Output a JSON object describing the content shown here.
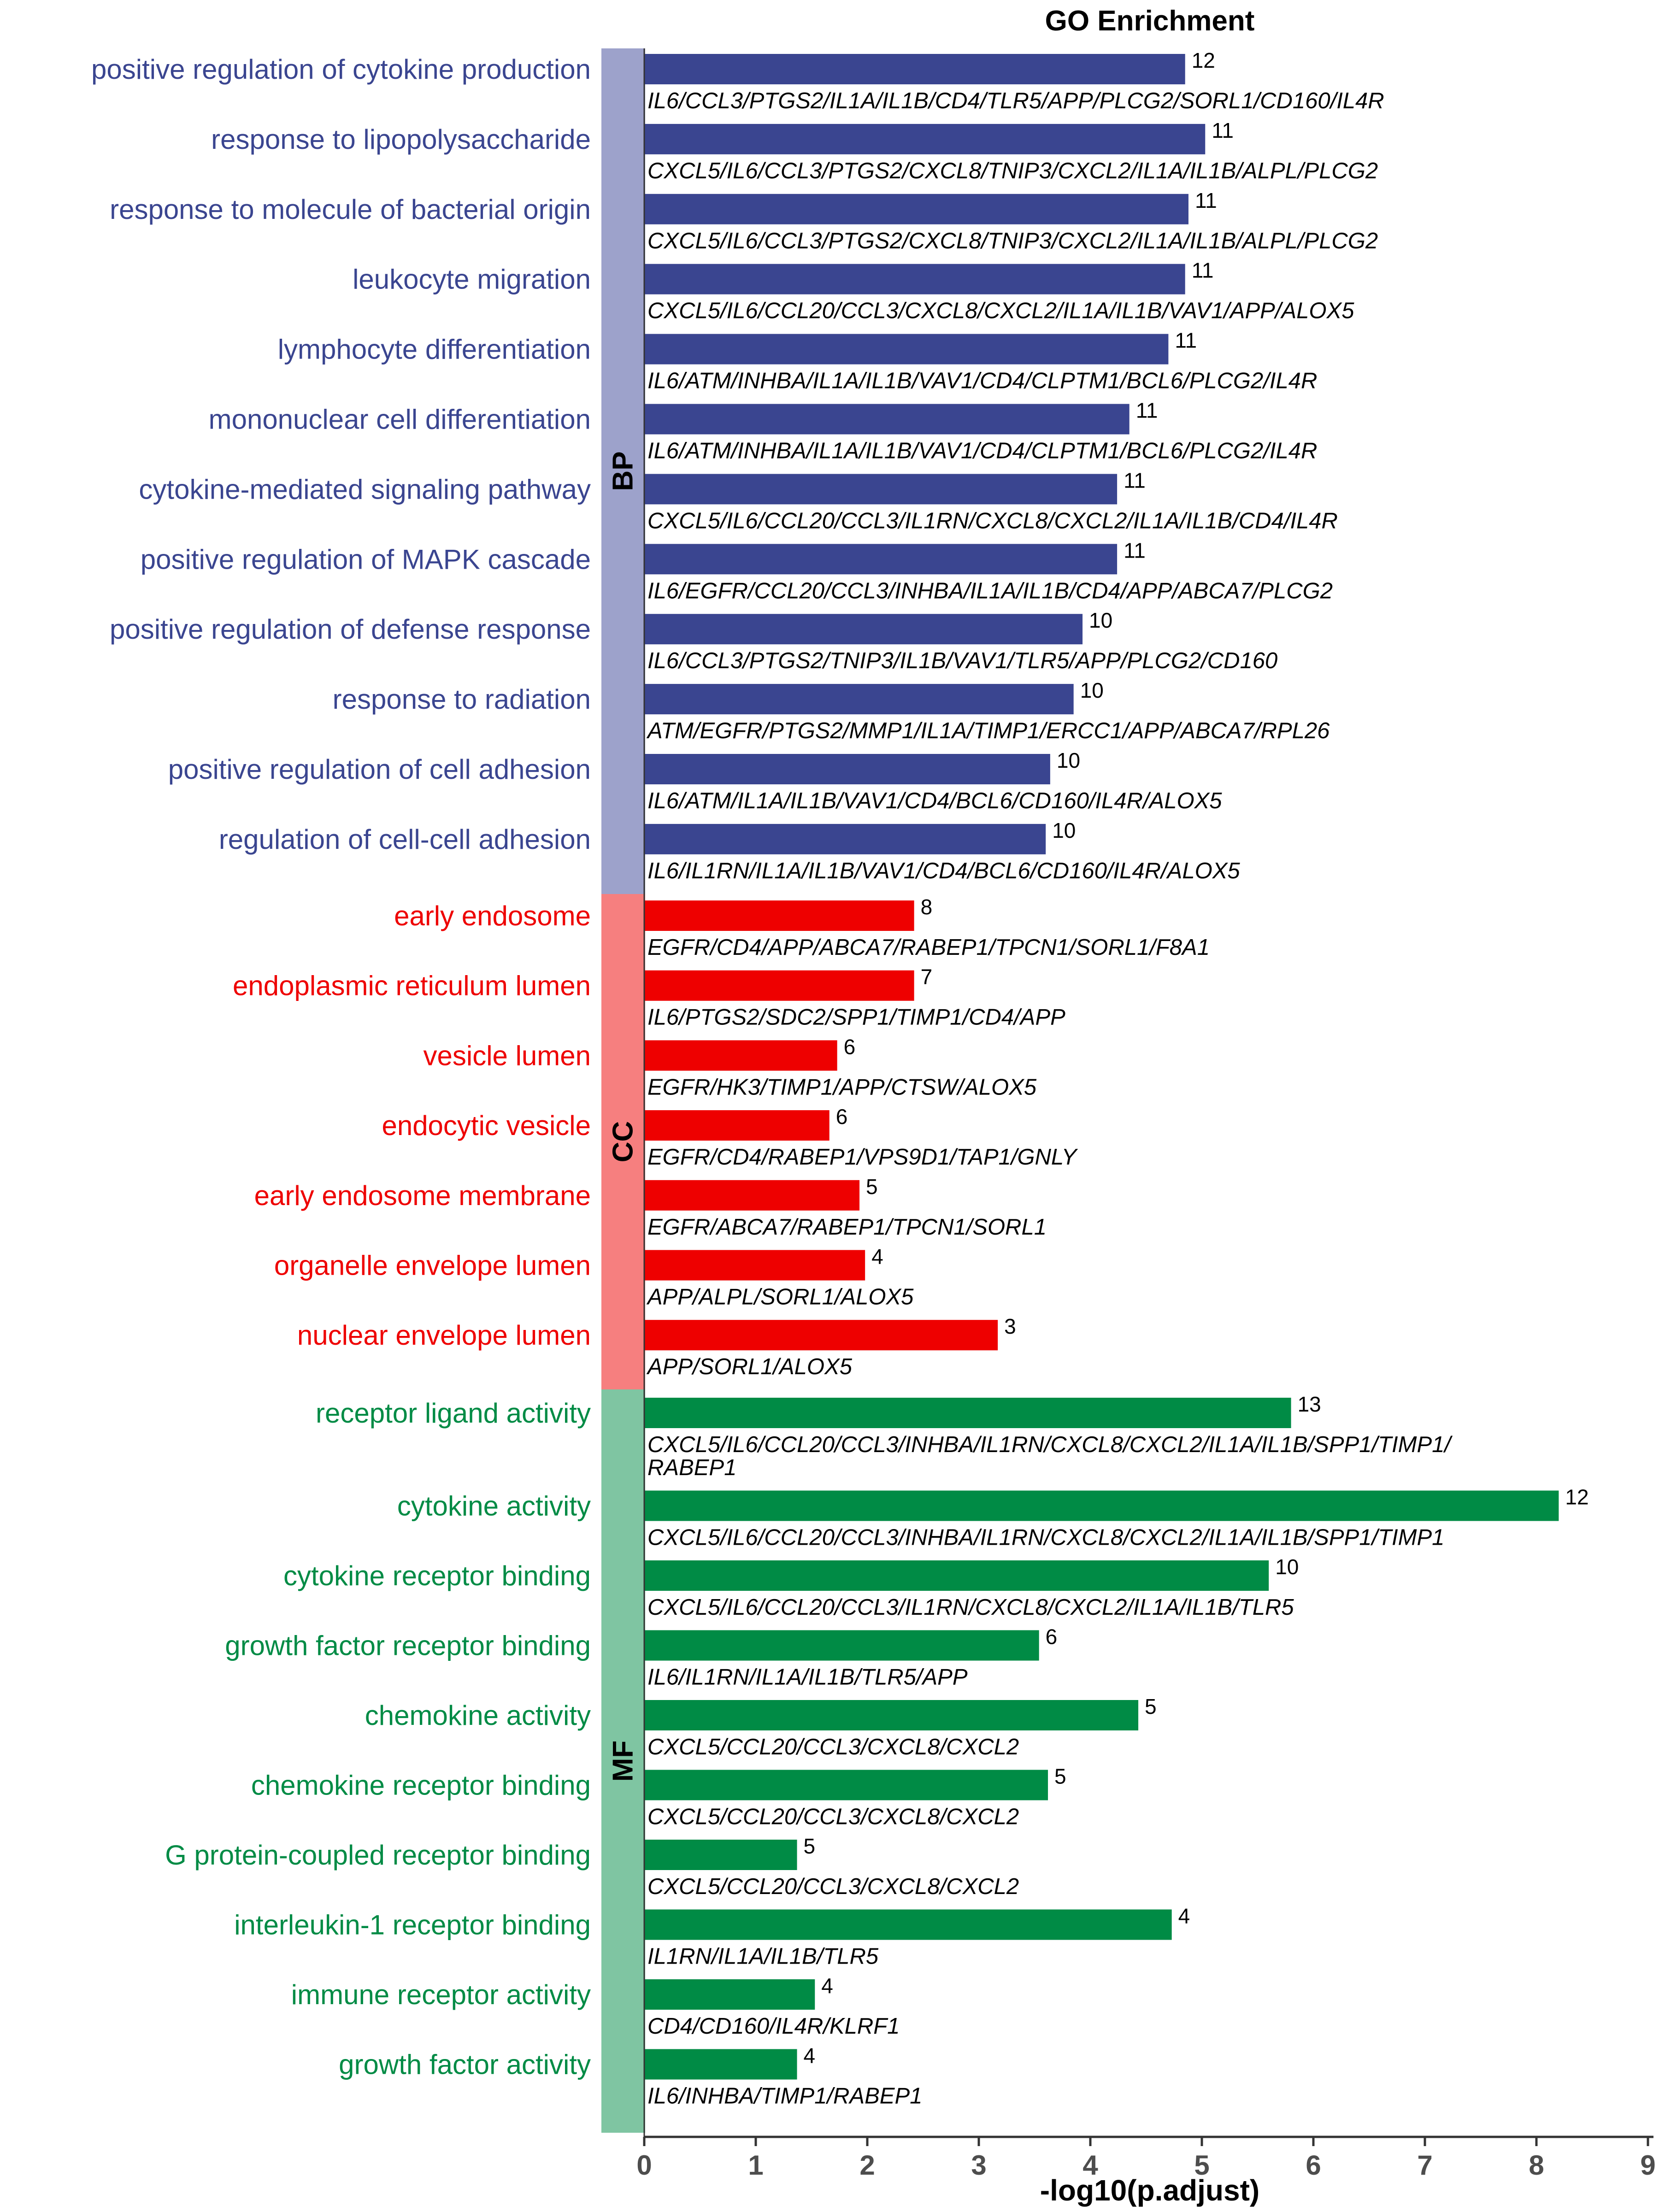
{
  "chart_data": {
    "type": "bar",
    "orientation": "horizontal",
    "title": "GO Enrichment",
    "xlabel": "-log10(p.adjust)",
    "xlim": [
      0,
      9
    ],
    "xticks": [
      "0",
      "1",
      "2",
      "3",
      "4",
      "5",
      "6",
      "7",
      "8",
      "9"
    ],
    "grid": false,
    "colors": {
      "BP": "#3a4590",
      "CC": "#ee0000",
      "MF": "#008b45",
      "BP_strip": "#9da2cb",
      "CC_strip": "#f67f7f",
      "MF_strip": "#7fc5a2"
    },
    "groups": [
      {
        "name": "BP",
        "terms": [
          {
            "term": "positive regulation of cytokine production",
            "value": 4.85,
            "count": "12",
            "genes": [
              "IL6/CCL3/PTGS2/IL1A/IL1B/CD4/TLR5/APP/PLCG2/SORL1/CD160/IL4R"
            ]
          },
          {
            "term": "response to lipopolysaccharide",
            "value": 5.03,
            "count": "11",
            "genes": [
              "CXCL5/IL6/CCL3/PTGS2/CXCL8/TNIP3/CXCL2/IL1A/IL1B/ALPL/PLCG2"
            ]
          },
          {
            "term": "response to molecule of bacterial origin",
            "value": 4.88,
            "count": "11",
            "genes": [
              "CXCL5/IL6/CCL3/PTGS2/CXCL8/TNIP3/CXCL2/IL1A/IL1B/ALPL/PLCG2"
            ]
          },
          {
            "term": "leukocyte migration",
            "value": 4.85,
            "count": "11",
            "genes": [
              "CXCL5/IL6/CCL20/CCL3/CXCL8/CXCL2/IL1A/IL1B/VAV1/APP/ALOX5"
            ]
          },
          {
            "term": "lymphocyte differentiation",
            "value": 4.7,
            "count": "11",
            "genes": [
              "IL6/ATM/INHBA/IL1A/IL1B/VAV1/CD4/CLPTM1/BCL6/PLCG2/IL4R"
            ]
          },
          {
            "term": "mononuclear cell differentiation",
            "value": 4.35,
            "count": "11",
            "genes": [
              "IL6/ATM/INHBA/IL1A/IL1B/VAV1/CD4/CLPTM1/BCL6/PLCG2/IL4R"
            ]
          },
          {
            "term": "cytokine-mediated signaling pathway",
            "value": 4.24,
            "count": "11",
            "genes": [
              "CXCL5/IL6/CCL20/CCL3/IL1RN/CXCL8/CXCL2/IL1A/IL1B/CD4/IL4R"
            ]
          },
          {
            "term": "positive regulation of MAPK cascade",
            "value": 4.24,
            "count": "11",
            "genes": [
              "IL6/EGFR/CCL20/CCL3/INHBA/IL1A/IL1B/CD4/APP/ABCA7/PLCG2"
            ]
          },
          {
            "term": "positive regulation of defense response",
            "value": 3.93,
            "count": "10",
            "genes": [
              "IL6/CCL3/PTGS2/TNIP3/IL1B/VAV1/TLR5/APP/PLCG2/CD160"
            ]
          },
          {
            "term": "response to radiation",
            "value": 3.85,
            "count": "10",
            "genes": [
              "ATM/EGFR/PTGS2/MMP1/IL1A/TIMP1/ERCC1/APP/ABCA7/RPL26"
            ]
          },
          {
            "term": "positive regulation of cell adhesion",
            "value": 3.64,
            "count": "10",
            "genes": [
              "IL6/ATM/IL1A/IL1B/VAV1/CD4/BCL6/CD160/IL4R/ALOX5"
            ]
          },
          {
            "term": "regulation of cell-cell adhesion",
            "value": 3.6,
            "count": "10",
            "genes": [
              "IL6/IL1RN/IL1A/IL1B/VAV1/CD4/BCL6/CD160/IL4R/ALOX5"
            ]
          }
        ]
      },
      {
        "name": "CC",
        "terms": [
          {
            "term": "early endosome",
            "value": 2.42,
            "count": "8",
            "genes": [
              "EGFR/CD4/APP/ABCA7/RABEP1/TPCN1/SORL1/F8A1"
            ]
          },
          {
            "term": "endoplasmic reticulum lumen",
            "value": 2.42,
            "count": "7",
            "genes": [
              "IL6/PTGS2/SDC2/SPP1/TIMP1/CD4/APP"
            ]
          },
          {
            "term": "vesicle lumen",
            "value": 1.73,
            "count": "6",
            "genes": [
              "EGFR/HK3/TIMP1/APP/CTSW/ALOX5"
            ]
          },
          {
            "term": "endocytic vesicle",
            "value": 1.66,
            "count": "6",
            "genes": [
              "EGFR/CD4/RABEP1/VPS9D1/TAP1/GNLY"
            ]
          },
          {
            "term": "early endosome membrane",
            "value": 1.93,
            "count": "5",
            "genes": [
              "EGFR/ABCA7/RABEP1/TPCN1/SORL1"
            ]
          },
          {
            "term": "organelle envelope lumen",
            "value": 1.98,
            "count": "4",
            "genes": [
              "APP/ALPL/SORL1/ALOX5"
            ]
          },
          {
            "term": "nuclear envelope lumen",
            "value": 3.17,
            "count": "3",
            "genes": [
              "APP/SORL1/ALOX5"
            ]
          }
        ]
      },
      {
        "name": "MF",
        "terms": [
          {
            "term": "receptor ligand activity",
            "value": 5.8,
            "count": "13",
            "genes": [
              "CXCL5/IL6/CCL20/CCL3/INHBA/IL1RN/CXCL8/CXCL2/IL1A/IL1B/SPP1/TIMP1/",
              "RABEP1"
            ]
          },
          {
            "term": "cytokine activity",
            "value": 8.2,
            "count": "12",
            "genes": [
              "CXCL5/IL6/CCL20/CCL3/INHBA/IL1RN/CXCL8/CXCL2/IL1A/IL1B/SPP1/TIMP1"
            ]
          },
          {
            "term": "cytokine receptor binding",
            "value": 5.6,
            "count": "10",
            "genes": [
              "CXCL5/IL6/CCL20/CCL3/IL1RN/CXCL8/CXCL2/IL1A/IL1B/TLR5"
            ]
          },
          {
            "term": "growth factor receptor binding",
            "value": 3.54,
            "count": "6",
            "genes": [
              "IL6/IL1RN/IL1A/IL1B/TLR5/APP"
            ]
          },
          {
            "term": "chemokine activity",
            "value": 4.43,
            "count": "5",
            "genes": [
              "CXCL5/CCL20/CCL3/CXCL8/CXCL2"
            ]
          },
          {
            "term": "chemokine receptor binding",
            "value": 3.62,
            "count": "5",
            "genes": [
              "CXCL5/CCL20/CCL3/CXCL8/CXCL2"
            ]
          },
          {
            "term": "G protein-coupled receptor binding",
            "value": 1.37,
            "count": "5",
            "genes": [
              "CXCL5/CCL20/CCL3/CXCL8/CXCL2"
            ]
          },
          {
            "term": "interleukin-1 receptor binding",
            "value": 4.73,
            "count": "4",
            "genes": [
              "IL1RN/IL1A/IL1B/TLR5"
            ]
          },
          {
            "term": "immune receptor activity",
            "value": 1.53,
            "count": "4",
            "genes": [
              "CD4/CD160/IL4R/KLRF1"
            ]
          },
          {
            "term": "growth factor activity",
            "value": 1.37,
            "count": "4",
            "genes": [
              "IL6/INHBA/TIMP1/RABEP1"
            ]
          }
        ]
      }
    ]
  }
}
